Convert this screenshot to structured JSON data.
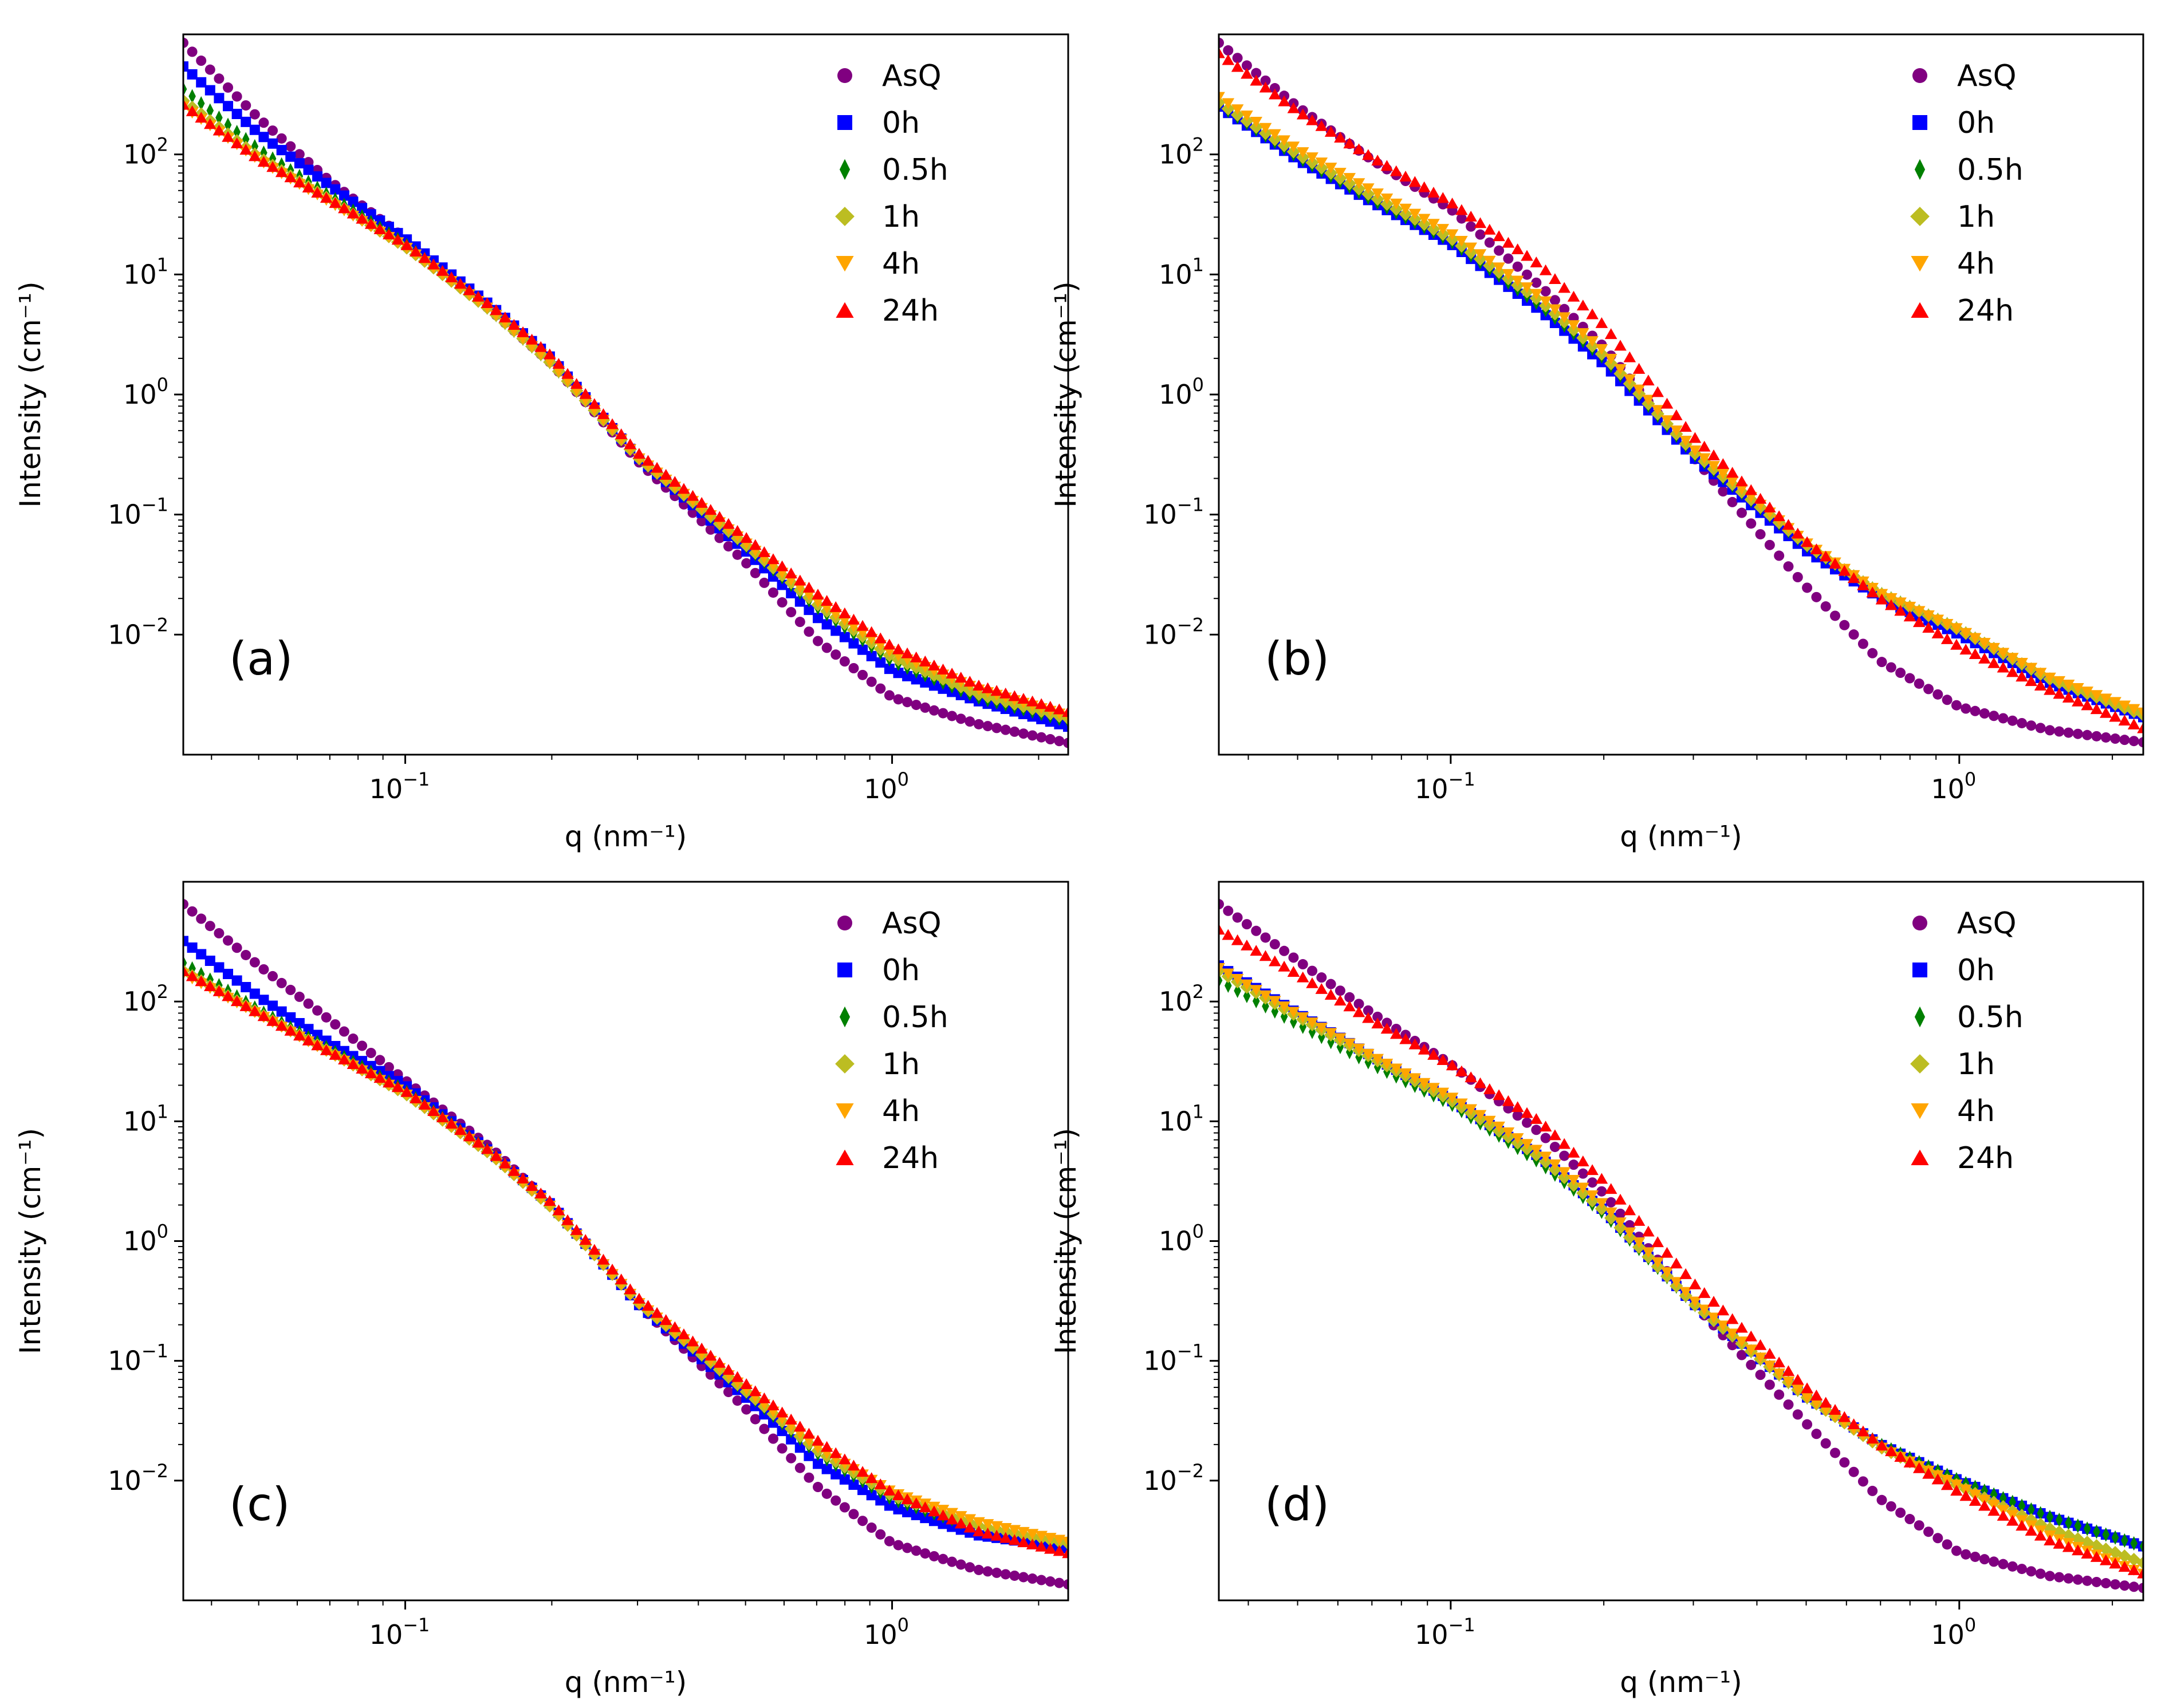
{
  "chart_data": [
    {
      "type": "scatter",
      "panel_label": "(a)",
      "xlabel": "q (nm⁻¹)",
      "ylabel": "Intensity (cm⁻¹)",
      "xscale": "log",
      "yscale": "log",
      "xlim": [
        0.035,
        2.3
      ],
      "ylim": [
        0.001,
        1000
      ],
      "legend_placement": "top-right",
      "series": [
        {
          "name": "AsQ",
          "marker": "circle",
          "color": "#800080",
          "x": [
            0.035,
            0.05,
            0.07,
            0.1,
            0.15,
            0.2,
            0.3,
            0.5,
            0.7,
            1.0,
            1.5,
            2.2
          ],
          "y": [
            850,
            200,
            60,
            20,
            5,
            1.8,
            0.28,
            0.04,
            0.009,
            0.003,
            0.0018,
            0.0013
          ]
        },
        {
          "name": "0h",
          "marker": "square",
          "color": "#0000ff",
          "x": [
            0.035,
            0.05,
            0.07,
            0.1,
            0.15,
            0.2,
            0.3,
            0.5,
            0.7,
            1.0,
            1.5,
            2.2
          ],
          "y": [
            540,
            150,
            55,
            20,
            5.5,
            2,
            0.3,
            0.05,
            0.014,
            0.005,
            0.0028,
            0.0018
          ]
        },
        {
          "name": "0.5h",
          "marker": "thin_diamond",
          "color": "#008000",
          "x": [
            0.035,
            0.05,
            0.07,
            0.1,
            0.15,
            0.2,
            0.3,
            0.5,
            0.7,
            1.0,
            1.5,
            2.2
          ],
          "y": [
            350,
            110,
            45,
            18,
            5,
            1.8,
            0.3,
            0.055,
            0.017,
            0.006,
            0.003,
            0.002
          ]
        },
        {
          "name": "1h",
          "marker": "diamond",
          "color": "#bcbd22",
          "x": [
            0.035,
            0.05,
            0.07,
            0.1,
            0.15,
            0.2,
            0.3,
            0.5,
            0.7,
            1.0,
            1.5,
            2.2
          ],
          "y": [
            280,
            95,
            42,
            17,
            5,
            1.8,
            0.3,
            0.056,
            0.018,
            0.0065,
            0.0032,
            0.0021
          ]
        },
        {
          "name": "4h",
          "marker": "triangle_down",
          "color": "#ffa500",
          "x": [
            0.035,
            0.05,
            0.07,
            0.1,
            0.15,
            0.2,
            0.3,
            0.5,
            0.7,
            1.0,
            1.5,
            2.2
          ],
          "y": [
            250,
            90,
            40,
            17,
            5,
            1.8,
            0.3,
            0.058,
            0.019,
            0.007,
            0.0035,
            0.0022
          ]
        },
        {
          "name": "24h",
          "marker": "triangle_up",
          "color": "#ff0000",
          "x": [
            0.035,
            0.05,
            0.07,
            0.1,
            0.15,
            0.2,
            0.3,
            0.5,
            0.7,
            1.0,
            1.5,
            2.2
          ],
          "y": [
            260,
            92,
            42,
            18,
            5.5,
            2.1,
            0.33,
            0.065,
            0.022,
            0.008,
            0.0038,
            0.0024
          ]
        }
      ]
    },
    {
      "type": "scatter",
      "panel_label": "(b)",
      "xlabel": "q (nm⁻¹)",
      "ylabel": "Intensity (cm⁻¹)",
      "xscale": "log",
      "yscale": "log",
      "xlim": [
        0.035,
        2.3
      ],
      "ylim": [
        0.001,
        1000
      ],
      "legend_placement": "top-right",
      "series": [
        {
          "name": "AsQ",
          "marker": "circle",
          "color": "#800080",
          "x": [
            0.035,
            0.05,
            0.07,
            0.1,
            0.15,
            0.2,
            0.3,
            0.5,
            0.7,
            1.0,
            1.5,
            2.2
          ],
          "y": [
            850,
            250,
            90,
            35,
            8,
            2.5,
            0.3,
            0.025,
            0.006,
            0.0025,
            0.0016,
            0.0013
          ]
        },
        {
          "name": "0h",
          "marker": "square",
          "color": "#0000ff",
          "x": [
            0.035,
            0.05,
            0.07,
            0.1,
            0.15,
            0.2,
            0.3,
            0.5,
            0.7,
            1.0,
            1.5,
            2.2
          ],
          "y": [
            250,
            90,
            40,
            18,
            5,
            1.8,
            0.3,
            0.05,
            0.02,
            0.01,
            0.004,
            0.0022
          ]
        },
        {
          "name": "0.5h",
          "marker": "thin_diamond",
          "color": "#008000",
          "x": [
            0.035,
            0.05,
            0.07,
            0.1,
            0.15,
            0.2,
            0.3,
            0.5,
            0.7,
            1.0,
            1.5,
            2.2
          ],
          "y": [
            260,
            95,
            42,
            19,
            5.5,
            2,
            0.32,
            0.055,
            0.022,
            0.011,
            0.0042,
            0.0023
          ]
        },
        {
          "name": "1h",
          "marker": "diamond",
          "color": "#bcbd22",
          "x": [
            0.035,
            0.05,
            0.07,
            0.1,
            0.15,
            0.2,
            0.3,
            0.5,
            0.7,
            1.0,
            1.5,
            2.2
          ],
          "y": [
            270,
            100,
            45,
            20,
            6,
            2.1,
            0.33,
            0.056,
            0.022,
            0.011,
            0.0043,
            0.0023
          ]
        },
        {
          "name": "4h",
          "marker": "triangle_down",
          "color": "#ffa500",
          "x": [
            0.035,
            0.05,
            0.07,
            0.1,
            0.15,
            0.2,
            0.3,
            0.5,
            0.7,
            1.0,
            1.5,
            2.2
          ],
          "y": [
            300,
            110,
            50,
            22,
            6.5,
            2.3,
            0.35,
            0.058,
            0.022,
            0.011,
            0.0044,
            0.0024
          ]
        },
        {
          "name": "24h",
          "marker": "triangle_up",
          "color": "#ff0000",
          "x": [
            0.035,
            0.05,
            0.07,
            0.1,
            0.15,
            0.2,
            0.3,
            0.5,
            0.7,
            1.0,
            1.5,
            2.2
          ],
          "y": [
            700,
            230,
            95,
            40,
            12,
            3.8,
            0.45,
            0.06,
            0.02,
            0.008,
            0.0035,
            0.0018
          ]
        }
      ]
    },
    {
      "type": "scatter",
      "panel_label": "(c)",
      "xlabel": "q (nm⁻¹)",
      "ylabel": "Intensity (cm⁻¹)",
      "xscale": "log",
      "yscale": "log",
      "xlim": [
        0.035,
        2.3
      ],
      "ylim": [
        0.001,
        1000
      ],
      "legend_placement": "top-right",
      "series": [
        {
          "name": "AsQ",
          "marker": "circle",
          "color": "#800080",
          "x": [
            0.035,
            0.05,
            0.07,
            0.1,
            0.15,
            0.2,
            0.3,
            0.5,
            0.7,
            1.0,
            1.5,
            2.2
          ],
          "y": [
            650,
            200,
            70,
            22,
            6,
            2,
            0.3,
            0.04,
            0.009,
            0.003,
            0.0018,
            0.0014
          ]
        },
        {
          "name": "0h",
          "marker": "square",
          "color": "#0000ff",
          "x": [
            0.035,
            0.05,
            0.07,
            0.1,
            0.15,
            0.2,
            0.3,
            0.5,
            0.7,
            1.0,
            1.5,
            2.2
          ],
          "y": [
            320,
            110,
            45,
            20,
            5.5,
            2,
            0.3,
            0.05,
            0.014,
            0.006,
            0.0035,
            0.0028
          ]
        },
        {
          "name": "0.5h",
          "marker": "thin_diamond",
          "color": "#008000",
          "x": [
            0.035,
            0.05,
            0.07,
            0.1,
            0.15,
            0.2,
            0.3,
            0.5,
            0.7,
            1.0,
            1.5,
            2.2
          ],
          "y": [
            210,
            85,
            40,
            18,
            5.5,
            2,
            0.31,
            0.055,
            0.017,
            0.007,
            0.004,
            0.003
          ]
        },
        {
          "name": "1h",
          "marker": "diamond",
          "color": "#bcbd22",
          "x": [
            0.035,
            0.05,
            0.07,
            0.1,
            0.15,
            0.2,
            0.3,
            0.5,
            0.7,
            1.0,
            1.5,
            2.2
          ],
          "y": [
            180,
            80,
            38,
            17,
            5.3,
            1.9,
            0.31,
            0.056,
            0.018,
            0.0075,
            0.0042,
            0.0031
          ]
        },
        {
          "name": "4h",
          "marker": "triangle_down",
          "color": "#ffa500",
          "x": [
            0.035,
            0.05,
            0.07,
            0.1,
            0.15,
            0.2,
            0.3,
            0.5,
            0.7,
            1.0,
            1.5,
            2.2
          ],
          "y": [
            170,
            78,
            37,
            17,
            5.3,
            1.9,
            0.31,
            0.058,
            0.019,
            0.008,
            0.0045,
            0.0032
          ]
        },
        {
          "name": "24h",
          "marker": "triangle_up",
          "color": "#ff0000",
          "x": [
            0.035,
            0.05,
            0.07,
            0.1,
            0.15,
            0.2,
            0.3,
            0.5,
            0.7,
            1.0,
            1.5,
            2.2
          ],
          "y": [
            180,
            80,
            38,
            18,
            5.6,
            2.1,
            0.34,
            0.065,
            0.022,
            0.008,
            0.0038,
            0.0026
          ]
        }
      ]
    },
    {
      "type": "scatter",
      "panel_label": "(d)",
      "xlabel": "q (nm⁻¹)",
      "ylabel": "Intensity (cm⁻¹)",
      "xscale": "log",
      "yscale": "log",
      "xlim": [
        0.035,
        2.3
      ],
      "ylim": [
        0.001,
        1000
      ],
      "legend_placement": "top-right",
      "series": [
        {
          "name": "AsQ",
          "marker": "circle",
          "color": "#800080",
          "x": [
            0.035,
            0.05,
            0.07,
            0.1,
            0.15,
            0.2,
            0.3,
            0.5,
            0.7,
            1.0,
            1.5,
            2.2
          ],
          "y": [
            650,
            220,
            80,
            30,
            8,
            2.5,
            0.3,
            0.03,
            0.007,
            0.0025,
            0.0016,
            0.0013
          ]
        },
        {
          "name": "0h",
          "marker": "square",
          "color": "#0000ff",
          "x": [
            0.035,
            0.05,
            0.07,
            0.1,
            0.15,
            0.2,
            0.3,
            0.5,
            0.7,
            1.0,
            1.5,
            2.2
          ],
          "y": [
            200,
            80,
            35,
            15,
            5,
            1.8,
            0.3,
            0.05,
            0.02,
            0.01,
            0.005,
            0.003
          ]
        },
        {
          "name": "0.5h",
          "marker": "thin_diamond",
          "color": "#008000",
          "x": [
            0.035,
            0.05,
            0.07,
            0.1,
            0.15,
            0.2,
            0.3,
            0.5,
            0.7,
            1.0,
            1.5,
            2.2
          ],
          "y": [
            150,
            65,
            30,
            14,
            4.5,
            1.7,
            0.3,
            0.05,
            0.02,
            0.01,
            0.005,
            0.003
          ]
        },
        {
          "name": "1h",
          "marker": "diamond",
          "color": "#bcbd22",
          "x": [
            0.035,
            0.05,
            0.07,
            0.1,
            0.15,
            0.2,
            0.3,
            0.5,
            0.7,
            1.0,
            1.5,
            2.2
          ],
          "y": [
            180,
            75,
            34,
            15,
            5,
            1.8,
            0.3,
            0.05,
            0.019,
            0.009,
            0.004,
            0.0022
          ]
        },
        {
          "name": "4h",
          "marker": "triangle_down",
          "color": "#ffa500",
          "x": [
            0.035,
            0.05,
            0.07,
            0.1,
            0.15,
            0.2,
            0.3,
            0.5,
            0.7,
            1.0,
            1.5,
            2.2
          ],
          "y": [
            190,
            78,
            35,
            16,
            5.5,
            2,
            0.32,
            0.05,
            0.019,
            0.009,
            0.0035,
            0.0018
          ]
        },
        {
          "name": "24h",
          "marker": "triangle_up",
          "color": "#ff0000",
          "x": [
            0.035,
            0.05,
            0.07,
            0.1,
            0.15,
            0.2,
            0.3,
            0.5,
            0.7,
            1.0,
            1.5,
            2.2
          ],
          "y": [
            400,
            170,
            70,
            30,
            10,
            3.2,
            0.45,
            0.06,
            0.02,
            0.008,
            0.0032,
            0.0018
          ]
        }
      ]
    }
  ]
}
